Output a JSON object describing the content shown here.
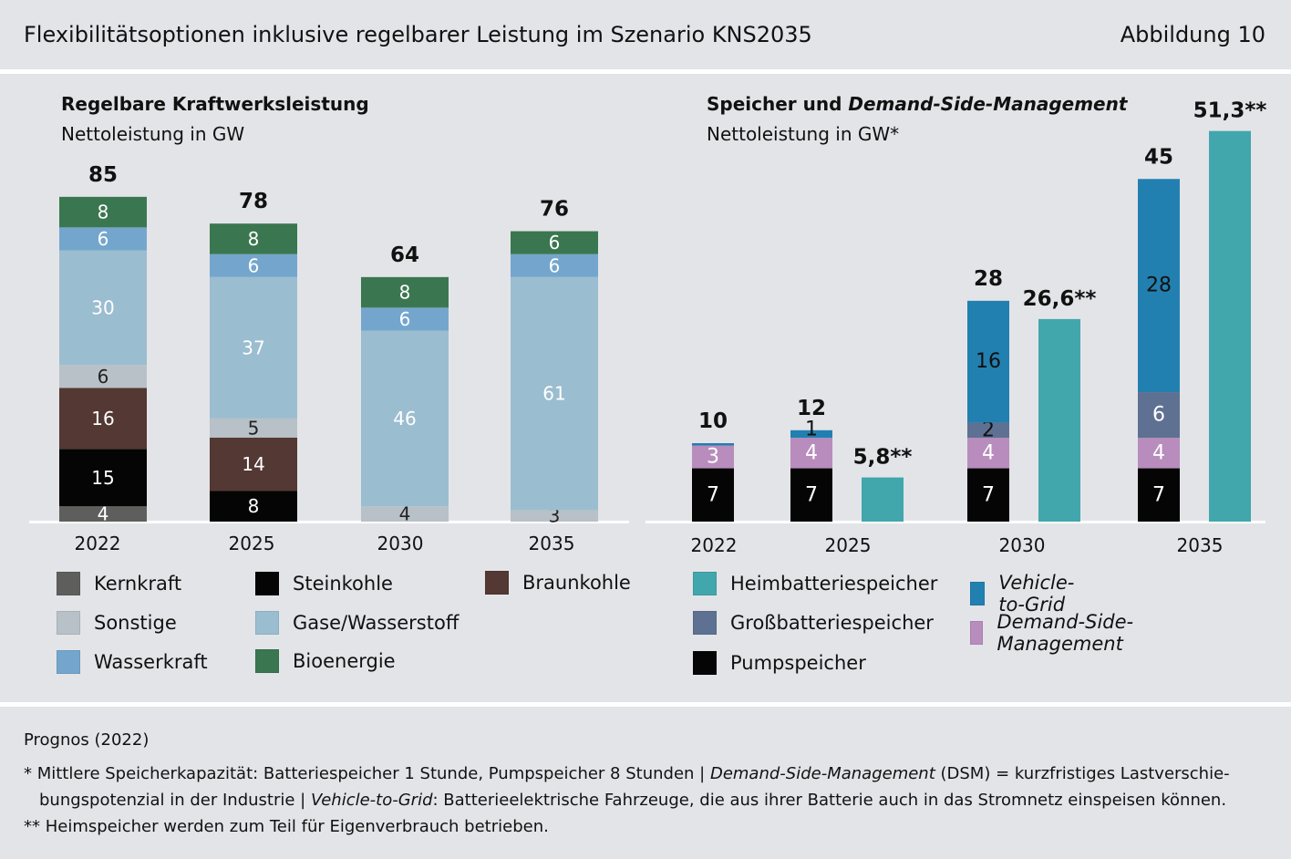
{
  "header": {
    "title": "Flexibilitätsoptionen inklusive regelbarer Leistung im Szenario KNS2035",
    "figure_label": "Abbildung 10"
  },
  "colors": {
    "Kernkraft": "#5e5f5c",
    "Steinkohle": "#050505",
    "Braunkohle": "#533833",
    "Sonstige": "#b8c1c7",
    "Gase/Wasserstoff": "#9bbdd0",
    "Wasserkraft": "#74a6cd",
    "Bioenergie": "#3a7750",
    "Heimbatteriespeicher": "#42a6ad",
    "Vehicle-to-Grid": "#2280b0",
    "Großbatteriespeicher": "#5e7192",
    "Demand-Side-Management": "#b88cbd",
    "Pumpspeicher": "#050505"
  },
  "chart_data": [
    {
      "type": "bar",
      "stacked": true,
      "title": "Regelbare Kraftwerksleistung",
      "subtitle": "Nettoleistung in GW",
      "categories": [
        "2022",
        "2025",
        "2030",
        "2035"
      ],
      "totals": [
        "85",
        "78",
        "64",
        "76"
      ],
      "series": [
        {
          "name": "Kernkraft",
          "values": [
            4,
            0,
            0,
            0
          ]
        },
        {
          "name": "Steinkohle",
          "values": [
            15,
            8,
            0,
            0
          ]
        },
        {
          "name": "Braunkohle",
          "values": [
            16,
            14,
            0,
            0
          ]
        },
        {
          "name": "Sonstige",
          "values": [
            6,
            5,
            4,
            3
          ]
        },
        {
          "name": "Gase/Wasserstoff",
          "values": [
            30,
            37,
            46,
            61
          ]
        },
        {
          "name": "Wasserkraft",
          "values": [
            6,
            6,
            6,
            6
          ]
        },
        {
          "name": "Bioenergie",
          "values": [
            8,
            8,
            8,
            6
          ]
        }
      ],
      "legend": {
        "position": "bottom",
        "items": [
          "Kernkraft",
          "Steinkohle",
          "Braunkohle",
          "Sonstige",
          "Gase/Wasserstoff",
          "Wasserkraft",
          "Bioenergie"
        ],
        "labels": {
          "Kernkraft": "Kernkraft",
          "Steinkohle": "Steinkohle",
          "Braunkohle": "Braunkohle",
          "Sonstige": "Sonstige",
          "Gase/Wasserstoff": "Gase/Wasserstoff",
          "Wasserkraft": "Wasserkraft",
          "Bioenergie": "Bioenergie"
        }
      }
    },
    {
      "type": "bar",
      "stacked": true,
      "title_plain": "Speicher und ",
      "title_italic": "Demand-Side-Management",
      "subtitle": "Nettoleistung in GW*",
      "categories": [
        "2022",
        "2025",
        "2030",
        "2035"
      ],
      "stacked_bars": [
        {
          "category": "2022",
          "total": "10",
          "segments": [
            {
              "name": "Pumpspeicher",
              "value": 7,
              "label": "7"
            },
            {
              "name": "Demand-Side-Management",
              "value": 3,
              "label": "3"
            },
            {
              "name": "Vehicle-to-Grid",
              "value": 0.3,
              "label": ""
            }
          ]
        },
        {
          "category": "2025",
          "total": "12",
          "segments": [
            {
              "name": "Pumpspeicher",
              "value": 7,
              "label": "7"
            },
            {
              "name": "Demand-Side-Management",
              "value": 4,
              "label": "4"
            },
            {
              "name": "Vehicle-to-Grid",
              "value": 1,
              "label": "1"
            }
          ]
        },
        {
          "category": "2030",
          "total": "28",
          "segments": [
            {
              "name": "Pumpspeicher",
              "value": 7,
              "label": "7"
            },
            {
              "name": "Demand-Side-Management",
              "value": 4,
              "label": "4"
            },
            {
              "name": "Großbatteriespeicher",
              "value": 2,
              "label": "2"
            },
            {
              "name": "Vehicle-to-Grid",
              "value": 16,
              "label": "16"
            }
          ]
        },
        {
          "category": "2035",
          "total": "45",
          "segments": [
            {
              "name": "Pumpspeicher",
              "value": 7,
              "label": "7"
            },
            {
              "name": "Demand-Side-Management",
              "value": 4,
              "label": "4"
            },
            {
              "name": "Großbatteriespeicher",
              "value": 6,
              "label": "6"
            },
            {
              "name": "Vehicle-to-Grid",
              "value": 28,
              "label": "28"
            }
          ]
        }
      ],
      "home_battery_bars": [
        {
          "category": "2025",
          "value": 5.8,
          "label": "5,8**"
        },
        {
          "category": "2030",
          "value": 26.6,
          "label": "26,6**"
        },
        {
          "category": "2035",
          "value": 51.3,
          "label": "51,3**"
        }
      ],
      "legend": {
        "position": "bottom",
        "items": [
          {
            "name": "Heimbatteriespeicher",
            "label": "Heimbatteriespeicher",
            "italic": false
          },
          {
            "name": "Vehicle-to-Grid",
            "label": "Vehicle-to-Grid",
            "italic": true
          },
          {
            "name": "Großbatteriespeicher",
            "label": "Großbatteriespeicher",
            "italic": false
          },
          {
            "name": "Demand-Side-Management",
            "label": "Demand-Side-Management",
            "italic": true
          },
          {
            "name": "Pumpspeicher",
            "label": "Pumpspeicher",
            "italic": false
          }
        ]
      }
    }
  ],
  "footer": {
    "source": "Prognos (2022)",
    "note1_a": "* Mittlere Speicherkapazität: Batteriespeicher 1 Stunde, Pumpspeicher 8 Stunden | ",
    "note1_b": "Demand-Side-Management",
    "note1_c": " (DSM) = kurzfristiges Lastverschie-",
    "note1_d": "bungspotenzial in der Industrie | ",
    "note1_e": "Vehicle-to-Grid",
    "note1_f": ": Batterieelektrische Fahrzeuge, die aus ihrer Batterie auch in das Stromnetz einspeisen können.",
    "note2": "** Heimspeicher werden zum Teil für Eigenverbrauch betrieben."
  }
}
